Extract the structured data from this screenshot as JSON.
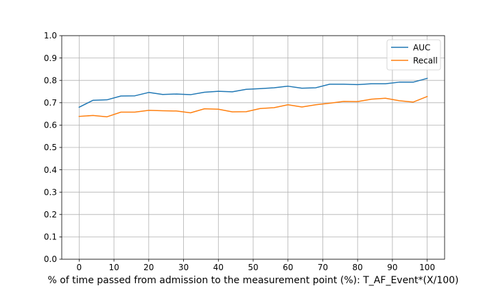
{
  "chart_data": {
    "type": "line",
    "title": "",
    "xlabel": "% of time passed from admission to the measurement point (%): T_AF_Event*(X/100)",
    "ylabel": "",
    "x": [
      0,
      4,
      8,
      12,
      16,
      20,
      24,
      28,
      32,
      36,
      40,
      44,
      48,
      52,
      56,
      60,
      64,
      68,
      72,
      76,
      80,
      84,
      88,
      92,
      96,
      100
    ],
    "series": [
      {
        "name": "AUC",
        "color": "#1f77b4",
        "values": [
          0.68,
          0.711,
          0.713,
          0.73,
          0.731,
          0.746,
          0.737,
          0.739,
          0.736,
          0.747,
          0.751,
          0.749,
          0.76,
          0.763,
          0.767,
          0.774,
          0.765,
          0.767,
          0.783,
          0.783,
          0.781,
          0.785,
          0.785,
          0.792,
          0.792,
          0.809
        ]
      },
      {
        "name": "Recall",
        "color": "#ff7f0e",
        "values": [
          0.639,
          0.643,
          0.637,
          0.658,
          0.658,
          0.666,
          0.664,
          0.663,
          0.655,
          0.673,
          0.671,
          0.659,
          0.66,
          0.674,
          0.678,
          0.691,
          0.681,
          0.691,
          0.698,
          0.706,
          0.705,
          0.716,
          0.72,
          0.709,
          0.703,
          0.728
        ]
      }
    ],
    "xlim": [
      -5,
      105
    ],
    "ylim": [
      0.0,
      1.0
    ],
    "xticks": [
      "0",
      "10",
      "20",
      "30",
      "40",
      "50",
      "60",
      "70",
      "80",
      "90",
      "100"
    ],
    "yticks": [
      "0.0",
      "0.1",
      "0.2",
      "0.3",
      "0.4",
      "0.5",
      "0.6",
      "0.7",
      "0.8",
      "0.9",
      "1.0"
    ],
    "grid": true,
    "legend_position": "top-right"
  }
}
